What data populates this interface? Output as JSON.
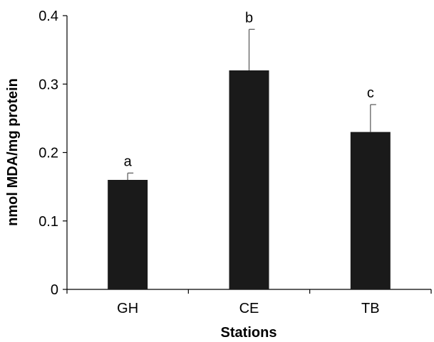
{
  "chart_data": {
    "type": "bar",
    "title": "",
    "xlabel": "Stations",
    "ylabel": "nmol MDA/mg protein",
    "categories": [
      "GH",
      "CE",
      "TB"
    ],
    "values": [
      0.16,
      0.32,
      0.23
    ],
    "error_upper": [
      0.01,
      0.06,
      0.04
    ],
    "significance_letters": [
      "a",
      "b",
      "c"
    ],
    "ylim": [
      0,
      0.4
    ],
    "yticks": [
      "0",
      "0.1",
      "0.2",
      "0.3",
      "0.4"
    ],
    "grid": false,
    "bar_color": "#1a1a1a"
  }
}
